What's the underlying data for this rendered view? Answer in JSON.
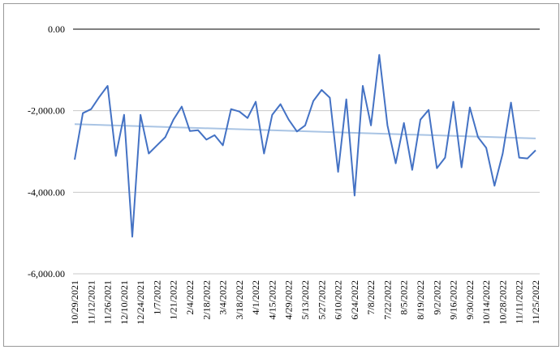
{
  "chart_data": {
    "type": "line",
    "categories": [
      "10/29/2021",
      null,
      "11/12/2021",
      null,
      "11/26/2021",
      null,
      "12/10/2021",
      null,
      "12/24/2021",
      null,
      "1/7/2022",
      null,
      "1/21/2022",
      null,
      "2/4/2022",
      null,
      "2/18/2022",
      null,
      "3/4/2022",
      null,
      "3/18/2022",
      null,
      "4/1/2022",
      null,
      "4/15/2022",
      null,
      "4/29/2022",
      null,
      "5/13/2022",
      null,
      "5/27/2022",
      null,
      "6/10/2022",
      null,
      "6/24/2022",
      null,
      "7/8/2022",
      null,
      "7/22/2022",
      null,
      "8/5/2022",
      null,
      "8/19/2022",
      null,
      "9/2/2022",
      null,
      "9/16/2022",
      null,
      "9/30/2022",
      null,
      "10/14/2022",
      null,
      "10/28/2022",
      null,
      "11/11/2022",
      null,
      "11/25/2022"
    ],
    "series": [
      {
        "color": "#4472c4",
        "values": [
          -3200,
          -2060,
          -1960,
          -1660,
          -1390,
          -3110,
          -2100,
          -5090,
          -2100,
          -3050,
          -2850,
          -2650,
          -2220,
          -1900,
          -2500,
          -2480,
          -2710,
          -2600,
          -2850,
          -1960,
          -2020,
          -2180,
          -1780,
          -3050,
          -2100,
          -1840,
          -2220,
          -2510,
          -2360,
          -1760,
          -1490,
          -1680,
          -3500,
          -1720,
          -4080,
          -1390,
          -2360,
          -630,
          -2360,
          -3290,
          -2300,
          -3450,
          -2220,
          -1980,
          -3410,
          -3150,
          -1780,
          -3390,
          -1920,
          -2650,
          -2910,
          -3840,
          -3050,
          -1800,
          -3150,
          -3170,
          -2970
        ]
      }
    ],
    "trendline": {
      "color": "#a9c4e4",
      "values": [
        -2330,
        -2680
      ]
    },
    "ylim": [
      -6000,
      0
    ],
    "yticks": [
      {
        "value": 0,
        "label": "0.00"
      },
      {
        "value": -2000,
        "label": "-2,000.00"
      },
      {
        "value": -4000,
        "label": "-4,000.00"
      },
      {
        "value": -6000,
        "label": "-6,000.00"
      }
    ],
    "grid": true
  }
}
